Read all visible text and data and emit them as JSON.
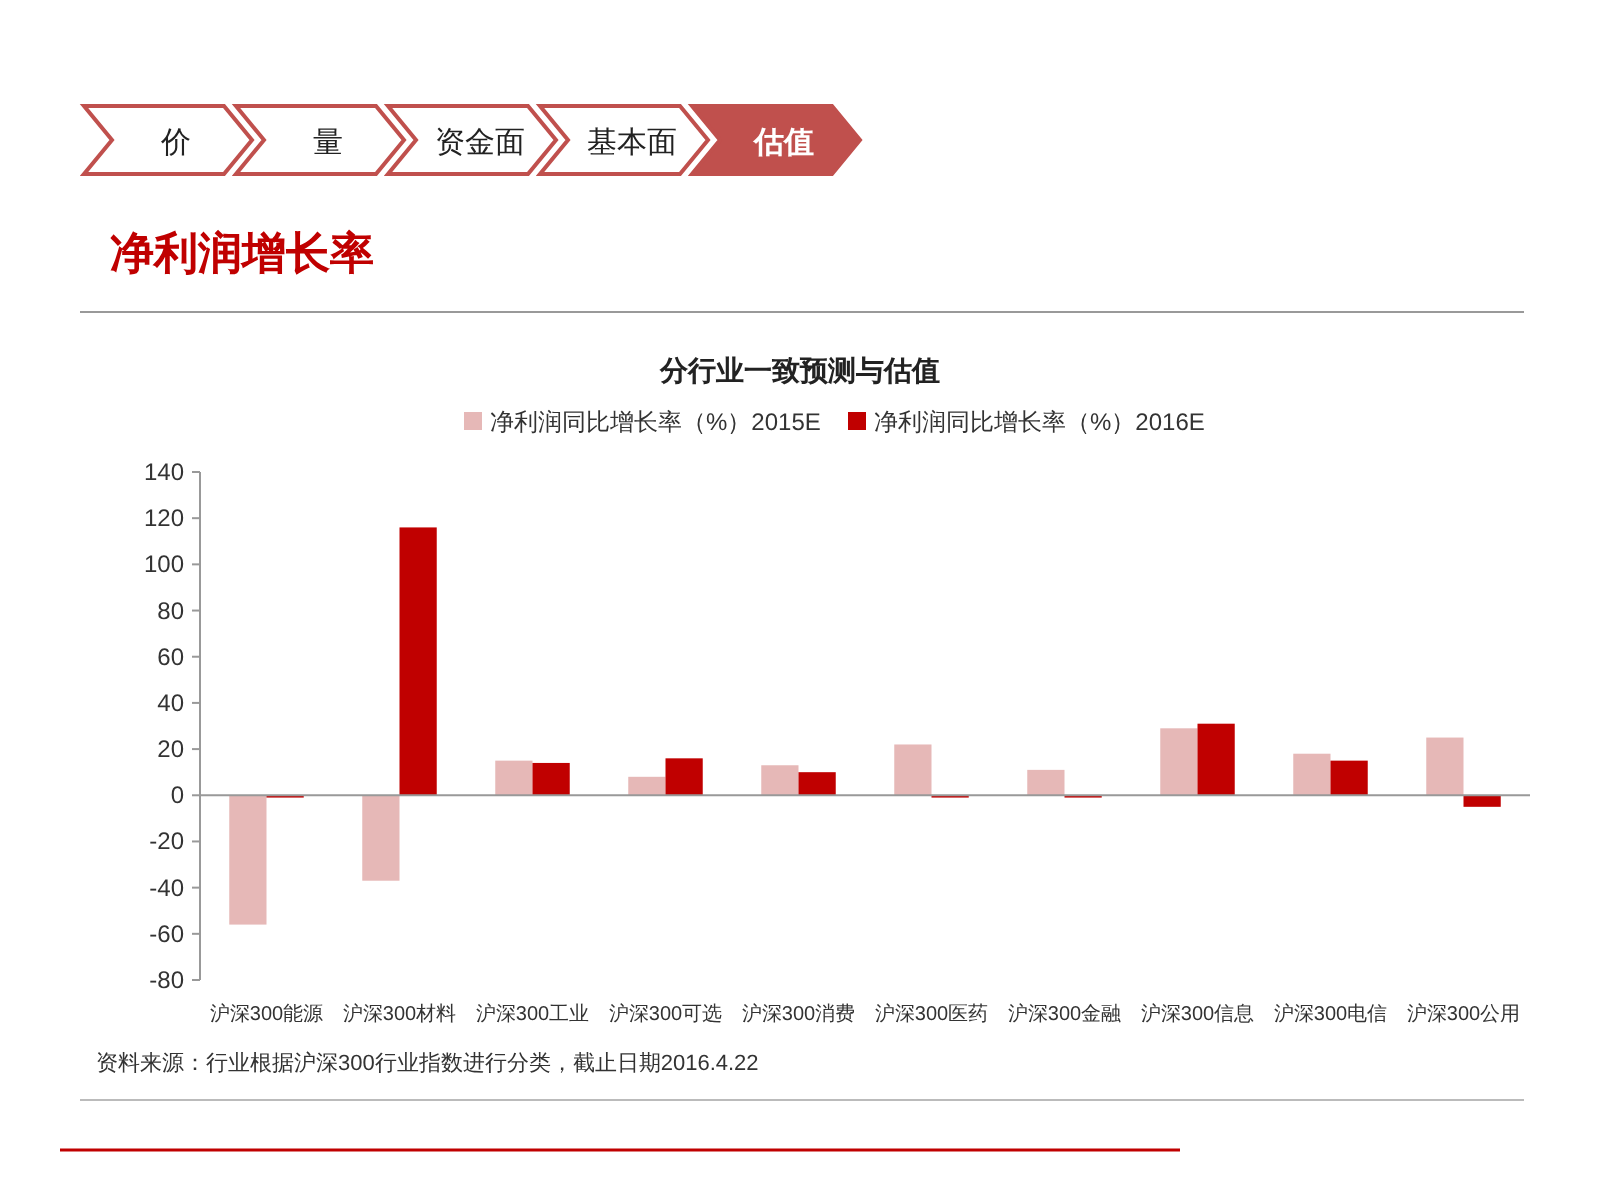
{
  "chart_data": {
    "type": "bar",
    "title": "净利润增长率",
    "subtitle": "分行业一致预测与估值",
    "categories": [
      "沪深300能源",
      "沪深300材料",
      "沪深300工业",
      "沪深300可选",
      "沪深300消费",
      "沪深300医药",
      "沪深300金融",
      "沪深300信息",
      "沪深300电信",
      "沪深300公用"
    ],
    "series": [
      {
        "name": "净利润同比增长率（%）2015E",
        "color": "#e6b8b7",
        "values": [
          -56,
          -37,
          15,
          8,
          13,
          22,
          11,
          29,
          18,
          25
        ]
      },
      {
        "name": "净利润同比增长率（%）2016E",
        "color": "#c00000",
        "values": [
          -1,
          116,
          14,
          16,
          10,
          -1,
          -1,
          31,
          15,
          -5
        ]
      }
    ],
    "ylim": [
      -80,
      140
    ],
    "yticks": [
      -80,
      -60,
      -40,
      -20,
      0,
      20,
      40,
      60,
      80,
      100,
      120,
      140
    ],
    "legend": "top",
    "annotations": [
      "价",
      "量",
      "资金面",
      "基本面",
      "估值",
      "资料来源：行业根据沪深300行业指数进行分类，截止日期2016.4.22"
    ]
  }
}
